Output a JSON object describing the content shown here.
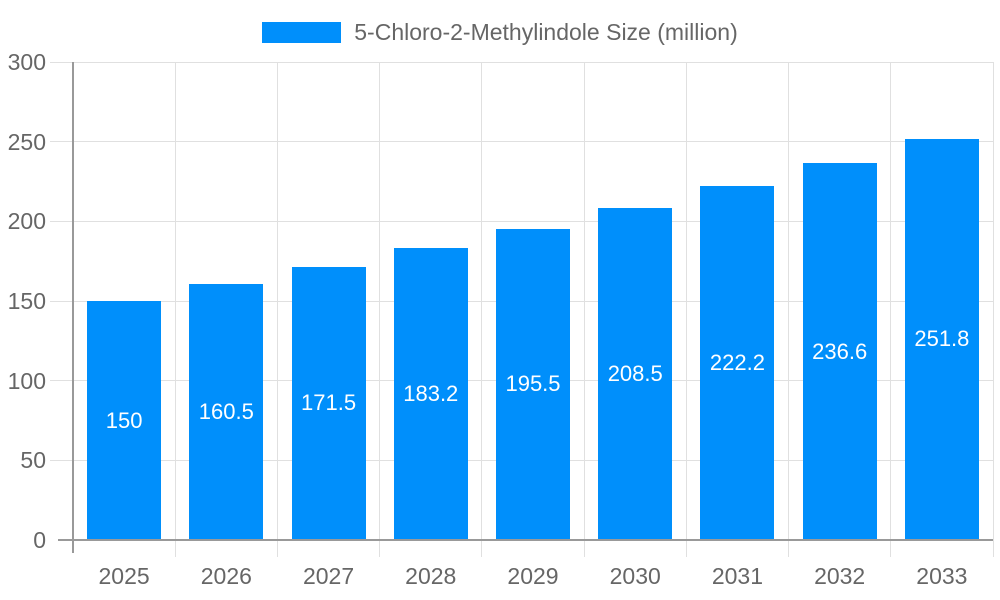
{
  "legend": {
    "label": "5-Chloro-2-Methylindole Size (million)"
  },
  "chart_data": {
    "type": "bar",
    "title": "5-Chloro-2-Methylindole Size (million)",
    "series_name": "5-Chloro-2-Methylindole Size (million)",
    "categories": [
      "2025",
      "2026",
      "2027",
      "2028",
      "2029",
      "2030",
      "2031",
      "2032",
      "2033"
    ],
    "values": [
      150,
      160.5,
      171.5,
      183.2,
      195.5,
      208.5,
      222.2,
      236.6,
      251.8
    ],
    "value_labels": [
      "150",
      "160.5",
      "171.5",
      "183.2",
      "195.5",
      "208.5",
      "222.2",
      "236.6",
      "251.8"
    ],
    "xlabel": "",
    "ylabel": "",
    "ylim": [
      0,
      300
    ],
    "yticks": [
      0,
      50,
      100,
      150,
      200,
      250,
      300
    ],
    "grid": true,
    "legend_position": "top"
  },
  "colors": {
    "bar": "#008FFB",
    "bar_label": "#ffffff",
    "axis_text": "#666666",
    "axis_line": "#999999",
    "gridline": "#e0e0e0",
    "background": "#ffffff"
  }
}
